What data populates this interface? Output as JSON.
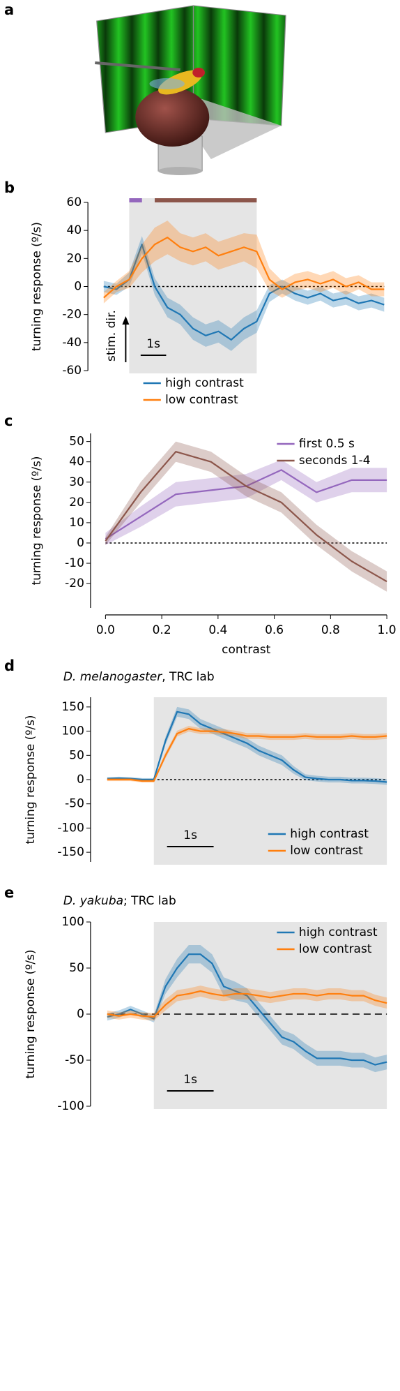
{
  "illustration": {
    "panel_label": "a"
  },
  "chart_data": [
    {
      "type": "line",
      "panel_label": "b",
      "ylabel": "turning response (º/s)",
      "xlim": [
        -1,
        10
      ],
      "ylim": [
        -60,
        60
      ],
      "yticks": [
        60,
        40,
        20,
        0,
        -20,
        -40,
        -60
      ],
      "stimulus": [
        0,
        5
      ],
      "zero_line": "dotted",
      "legend": "below",
      "stim_bars": [
        {
          "color": "#9467bd",
          "span": [
            0,
            0.5
          ]
        },
        {
          "color": "#8c564b",
          "span": [
            1,
            5
          ]
        }
      ],
      "stim_label": "stim. dir.",
      "scale_bar": {
        "label": "1s",
        "length": 1
      },
      "x": [
        -1,
        -0.5,
        0,
        0.5,
        1,
        1.5,
        2,
        2.5,
        3,
        3.5,
        4,
        4.5,
        5,
        5.5,
        6,
        6.5,
        7,
        7.5,
        8,
        8.5,
        9,
        9.5,
        10
      ],
      "series": [
        {
          "name": "high contrast",
          "color": "#1f77b4",
          "values": [
            0,
            -2,
            5,
            30,
            0,
            -15,
            -20,
            -30,
            -35,
            -32,
            -38,
            -30,
            -25,
            -5,
            0,
            -5,
            -8,
            -5,
            -10,
            -8,
            -12,
            -10,
            -13
          ],
          "error": [
            4,
            4,
            5,
            6,
            6,
            7,
            7,
            8,
            8,
            8,
            8,
            8,
            8,
            6,
            5,
            5,
            5,
            5,
            5,
            5,
            5,
            5,
            5
          ]
        },
        {
          "name": "low contrast",
          "color": "#ff7f0e",
          "values": [
            -8,
            0,
            5,
            20,
            30,
            35,
            28,
            25,
            28,
            22,
            25,
            28,
            25,
            5,
            -2,
            3,
            5,
            2,
            5,
            0,
            3,
            -2,
            -2
          ],
          "error": [
            4,
            4,
            6,
            10,
            12,
            12,
            10,
            10,
            10,
            10,
            10,
            10,
            12,
            8,
            6,
            6,
            6,
            6,
            6,
            6,
            5,
            5,
            5
          ]
        }
      ]
    },
    {
      "type": "line",
      "panel_label": "c",
      "ylabel": "turning response (º/s)",
      "xlabel": "contrast",
      "xlim": [
        0,
        1
      ],
      "ylim": [
        -32,
        54
      ],
      "yticks": [
        50,
        40,
        30,
        20,
        10,
        0,
        -10,
        -20
      ],
      "xticks": [
        {
          "value": 0,
          "label": "0.0"
        },
        {
          "value": 0.2,
          "label": "0.2"
        },
        {
          "value": 0.4,
          "label": "0.4"
        },
        {
          "value": 0.6,
          "label": "0.6"
        },
        {
          "value": 0.8,
          "label": "0.8"
        },
        {
          "value": 1,
          "label": "1.0"
        }
      ],
      "zero_line": "dotted",
      "legend": "upper right",
      "x": [
        0,
        0.125,
        0.25,
        0.375,
        0.5,
        0.625,
        0.75,
        0.875,
        1
      ],
      "series": [
        {
          "name": "first 0.5 s",
          "color": "#9467bd",
          "values": [
            2,
            13,
            24,
            26,
            28,
            36,
            25,
            31,
            31
          ],
          "error": [
            3,
            5,
            6,
            6,
            6,
            5,
            5,
            6,
            6
          ]
        },
        {
          "name": "seconds 1-4",
          "color": "#8c564b",
          "values": [
            1,
            25,
            45,
            40,
            28,
            20,
            4,
            -9,
            -19
          ],
          "error": [
            2,
            5,
            5,
            5,
            5,
            5,
            5,
            5,
            5
          ]
        }
      ]
    },
    {
      "type": "line",
      "panel_label": "d",
      "title": [
        {
          "text": "D. melanogaster",
          "italic": true
        },
        {
          "text": ", TRC lab",
          "italic": false
        }
      ],
      "ylabel": "turning response (º/s)",
      "xlim": [
        -1,
        5
      ],
      "ylim": [
        -170,
        170
      ],
      "yticks": [
        150,
        100,
        50,
        0,
        -50,
        -100,
        -150
      ],
      "stimulus": [
        0,
        5
      ],
      "zero_line": "dotted",
      "legend": "lower right",
      "scale_bar": {
        "label": "1s",
        "length": 1
      },
      "x": [
        -1,
        -0.75,
        -0.5,
        -0.25,
        0,
        0.25,
        0.5,
        0.75,
        1,
        1.25,
        1.5,
        1.75,
        2,
        2.25,
        2.5,
        2.75,
        3,
        3.25,
        3.5,
        3.75,
        4,
        4.25,
        4.5,
        4.75,
        5
      ],
      "series": [
        {
          "name": "high contrast",
          "color": "#1f77b4",
          "values": [
            2,
            3,
            2,
            0,
            0,
            80,
            140,
            135,
            115,
            105,
            95,
            85,
            75,
            60,
            50,
            40,
            20,
            5,
            2,
            0,
            0,
            -2,
            -2,
            -3,
            -5
          ],
          "error": [
            3,
            3,
            3,
            3,
            3,
            8,
            10,
            10,
            10,
            10,
            10,
            10,
            10,
            10,
            10,
            10,
            8,
            6,
            6,
            6,
            6,
            6,
            6,
            6,
            6
          ]
        },
        {
          "name": "low contrast",
          "color": "#ff7f0e",
          "values": [
            0,
            0,
            0,
            -3,
            -3,
            50,
            95,
            105,
            100,
            100,
            98,
            95,
            90,
            90,
            88,
            88,
            88,
            90,
            88,
            88,
            88,
            90,
            88,
            88,
            90
          ],
          "error": [
            3,
            3,
            3,
            3,
            3,
            6,
            6,
            6,
            6,
            6,
            6,
            6,
            6,
            6,
            6,
            6,
            6,
            6,
            6,
            6,
            6,
            6,
            6,
            6,
            6
          ]
        }
      ]
    },
    {
      "type": "line",
      "panel_label": "e",
      "title": [
        {
          "text": "D. yakuba",
          "italic": true
        },
        {
          "text": "; TRC lab",
          "italic": false
        }
      ],
      "ylabel": "turning response (º/s)",
      "xlim": [
        -1,
        5
      ],
      "ylim": [
        -100,
        100
      ],
      "yticks": [
        100,
        50,
        0,
        -50,
        -100
      ],
      "stimulus": [
        0,
        5
      ],
      "zero_line": "dashed",
      "legend": "upper right",
      "scale_bar": {
        "label": "1s",
        "length": 1
      },
      "x": [
        -1,
        -0.75,
        -0.5,
        -0.25,
        0,
        0.25,
        0.5,
        0.75,
        1,
        1.25,
        1.5,
        1.75,
        2,
        2.25,
        2.5,
        2.75,
        3,
        3.25,
        3.5,
        3.75,
        4,
        4.25,
        4.5,
        4.75,
        5
      ],
      "series": [
        {
          "name": "high contrast",
          "color": "#1f77b4",
          "values": [
            -3,
            0,
            5,
            0,
            -5,
            30,
            50,
            65,
            65,
            55,
            30,
            25,
            20,
            5,
            -10,
            -25,
            -30,
            -40,
            -48,
            -48,
            -48,
            -50,
            -50,
            -55,
            -52
          ],
          "error": [
            4,
            4,
            4,
            4,
            4,
            8,
            10,
            10,
            10,
            10,
            10,
            10,
            8,
            8,
            8,
            8,
            8,
            8,
            8,
            8,
            8,
            8,
            8,
            8,
            8
          ]
        },
        {
          "name": "low contrast",
          "color": "#ff7f0e",
          "values": [
            0,
            -2,
            0,
            -2,
            -3,
            10,
            20,
            22,
            25,
            22,
            20,
            22,
            22,
            20,
            18,
            20,
            22,
            22,
            20,
            22,
            22,
            20,
            20,
            15,
            12
          ],
          "error": [
            4,
            4,
            4,
            4,
            4,
            6,
            6,
            6,
            6,
            6,
            6,
            6,
            6,
            6,
            6,
            6,
            6,
            6,
            6,
            6,
            6,
            6,
            6,
            6,
            6
          ]
        }
      ]
    }
  ]
}
